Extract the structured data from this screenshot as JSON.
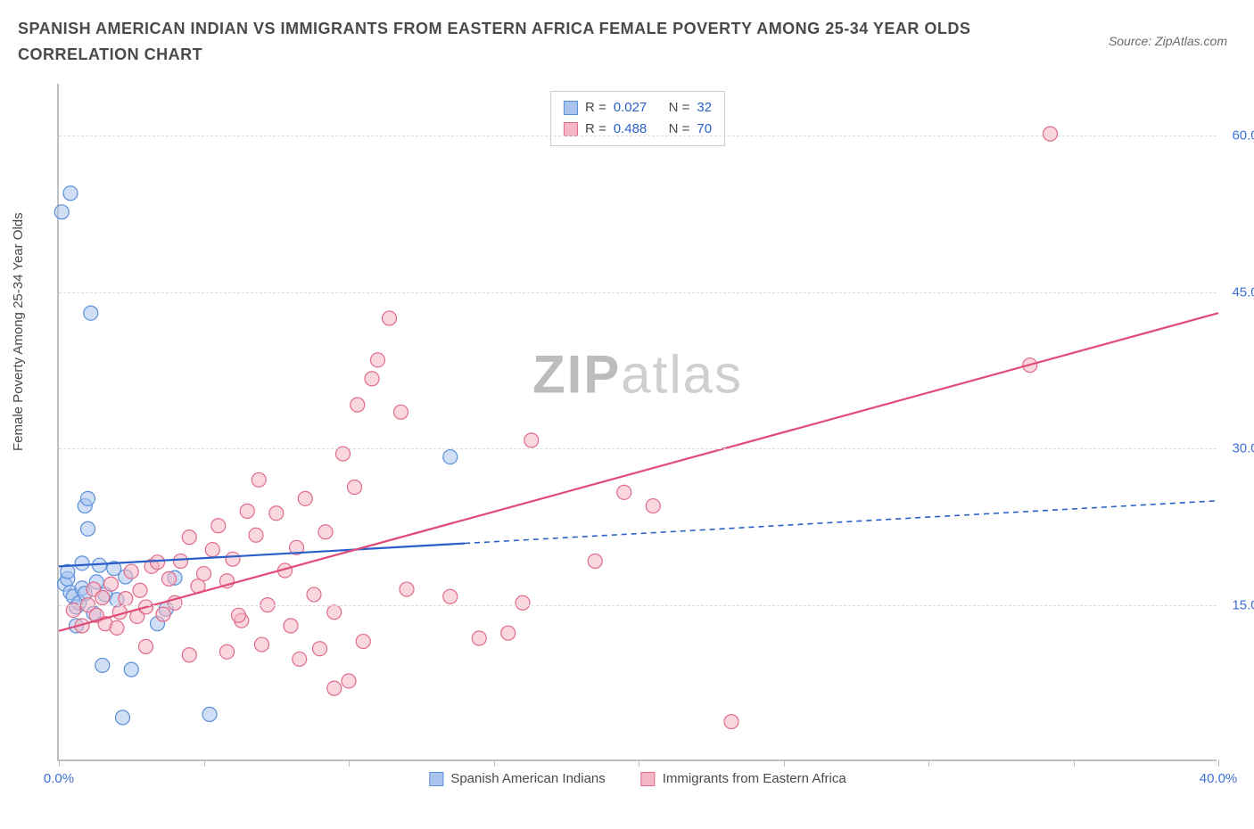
{
  "title": "SPANISH AMERICAN INDIAN VS IMMIGRANTS FROM EASTERN AFRICA FEMALE POVERTY AMONG 25-34 YEAR OLDS CORRELATION CHART",
  "source": "Source: ZipAtlas.com",
  "ylabel": "Female Poverty Among 25-34 Year Olds",
  "watermark_bold": "ZIP",
  "watermark_light": "atlas",
  "chart": {
    "type": "scatter",
    "xlim": [
      0,
      40
    ],
    "ylim": [
      0,
      65
    ],
    "x_ticks": [
      0,
      5,
      10,
      15,
      20,
      25,
      30,
      35,
      40
    ],
    "x_tick_labels": {
      "0": "0.0%",
      "40": "40.0%"
    },
    "y_ticks": [
      15,
      30,
      45,
      60
    ],
    "y_tick_labels": [
      "15.0%",
      "30.0%",
      "45.0%",
      "60.0%"
    ],
    "grid_color": "#dddddd",
    "axis_color": "#bfbfbf",
    "tick_label_color": "#3b6fd6",
    "background_color": "#ffffff",
    "marker_radius": 8,
    "marker_opacity": 0.55,
    "series": [
      {
        "id": "spanish_american_indians",
        "label": "Spanish American Indians",
        "color_fill": "#a9c5ee",
        "color_stroke": "#5a8fd8",
        "r": "0.027",
        "n": "32",
        "trend": {
          "y_at_x0": 18.7,
          "y_at_x40": 25.0,
          "solid_until_x": 14,
          "color": "#2a5fc9",
          "width": 2.2,
          "dash": "6,5"
        },
        "points": [
          [
            0.2,
            17
          ],
          [
            0.3,
            17.5
          ],
          [
            0.3,
            18.2
          ],
          [
            0.4,
            16.2
          ],
          [
            0.5,
            15.8
          ],
          [
            0.6,
            13
          ],
          [
            0.6,
            14.8
          ],
          [
            0.8,
            16.6
          ],
          [
            0.8,
            19
          ],
          [
            0.9,
            24.5
          ],
          [
            1.0,
            25.2
          ],
          [
            1.0,
            22.3
          ],
          [
            1.1,
            43
          ],
          [
            0.1,
            52.7
          ],
          [
            0.4,
            54.5
          ],
          [
            1.2,
            14.2
          ],
          [
            1.3,
            17.2
          ],
          [
            1.5,
            9.2
          ],
          [
            1.6,
            16
          ],
          [
            2.2,
            4.2
          ],
          [
            2.3,
            17.7
          ],
          [
            3.4,
            13.2
          ],
          [
            3.7,
            14.6
          ],
          [
            4.0,
            17.6
          ],
          [
            1.9,
            18.5
          ],
          [
            5.2,
            4.5
          ],
          [
            2.5,
            8.8
          ],
          [
            0.7,
            15.2
          ],
          [
            0.9,
            16.1
          ],
          [
            1.4,
            18.8
          ],
          [
            13.5,
            29.2
          ],
          [
            2.0,
            15.5
          ]
        ]
      },
      {
        "id": "immigrants_eastern_africa",
        "label": "Immigrants from Eastern Africa",
        "color_fill": "#f5b7c5",
        "color_stroke": "#e06b8a",
        "r": "0.488",
        "n": "70",
        "trend": {
          "y_at_x0": 12.5,
          "y_at_x40": 43.0,
          "solid_until_x": 40,
          "color": "#e14b77",
          "width": 2.2,
          "dash": null
        },
        "points": [
          [
            0.5,
            14.5
          ],
          [
            0.8,
            13
          ],
          [
            1.0,
            15
          ],
          [
            1.2,
            16.5
          ],
          [
            1.3,
            14
          ],
          [
            1.5,
            15.7
          ],
          [
            1.6,
            13.2
          ],
          [
            1.8,
            17
          ],
          [
            2.0,
            12.8
          ],
          [
            2.1,
            14.3
          ],
          [
            2.3,
            15.6
          ],
          [
            2.5,
            18.2
          ],
          [
            2.7,
            13.9
          ],
          [
            2.8,
            16.4
          ],
          [
            3.0,
            14.8
          ],
          [
            3.2,
            18.7
          ],
          [
            3.4,
            19.1
          ],
          [
            3.6,
            14.1
          ],
          [
            3.8,
            17.5
          ],
          [
            4.0,
            15.2
          ],
          [
            4.2,
            19.2
          ],
          [
            4.5,
            21.5
          ],
          [
            4.8,
            16.8
          ],
          [
            5.0,
            18.0
          ],
          [
            5.3,
            20.3
          ],
          [
            5.5,
            22.6
          ],
          [
            5.8,
            17.3
          ],
          [
            6.0,
            19.4
          ],
          [
            6.3,
            13.5
          ],
          [
            6.5,
            24.0
          ],
          [
            6.8,
            21.7
          ],
          [
            6.9,
            27.0
          ],
          [
            7.2,
            15.0
          ],
          [
            7.5,
            23.8
          ],
          [
            7.8,
            18.3
          ],
          [
            8.0,
            13.0
          ],
          [
            8.2,
            20.5
          ],
          [
            8.5,
            25.2
          ],
          [
            8.8,
            16.0
          ],
          [
            9.0,
            10.8
          ],
          [
            9.2,
            22.0
          ],
          [
            9.5,
            14.3
          ],
          [
            9.8,
            29.5
          ],
          [
            10.0,
            7.7
          ],
          [
            10.2,
            26.3
          ],
          [
            10.5,
            11.5
          ],
          [
            10.3,
            34.2
          ],
          [
            10.8,
            36.7
          ],
          [
            11.0,
            38.5
          ],
          [
            11.4,
            42.5
          ],
          [
            11.8,
            33.5
          ],
          [
            12.0,
            16.5
          ],
          [
            9.5,
            7.0
          ],
          [
            14.5,
            11.8
          ],
          [
            15.5,
            12.3
          ],
          [
            16.0,
            15.2
          ],
          [
            16.3,
            30.8
          ],
          [
            18.5,
            19.2
          ],
          [
            19.5,
            25.8
          ],
          [
            20.5,
            24.5
          ],
          [
            23.2,
            3.8
          ],
          [
            33.5,
            38.0
          ],
          [
            34.2,
            60.2
          ],
          [
            13.5,
            15.8
          ],
          [
            4.5,
            10.2
          ],
          [
            5.8,
            10.5
          ],
          [
            7.0,
            11.2
          ],
          [
            8.3,
            9.8
          ],
          [
            3.0,
            11.0
          ],
          [
            6.2,
            14.0
          ]
        ]
      }
    ]
  },
  "legend_top": {
    "r_label": "R =",
    "n_label": "N ="
  }
}
